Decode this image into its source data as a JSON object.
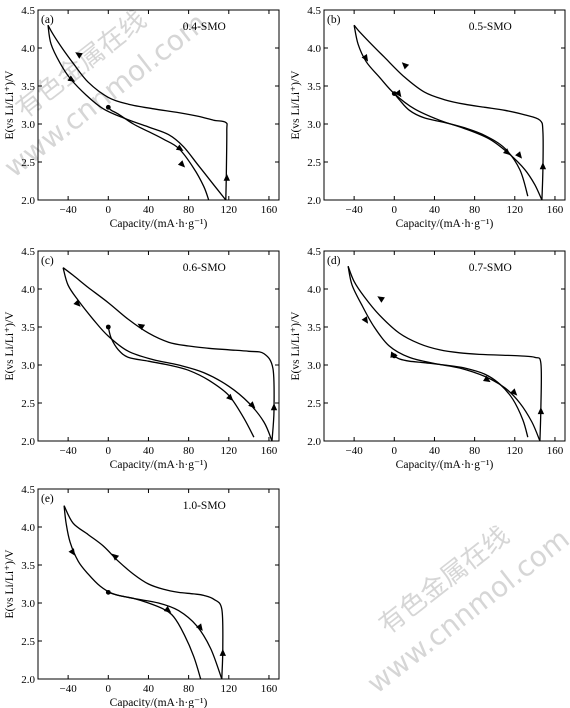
{
  "watermark": {
    "cn": "有色金属在线",
    "url": "www.cnnmol.com"
  },
  "chart_data": [
    {
      "type": "line",
      "panel": "(a)",
      "sample": "0.4-SMO",
      "xlabel": "Capacity/(mA·h·g⁻¹)",
      "ylabel": "E(vs Li/Li⁺)/V",
      "xlim": [
        -70,
        170
      ],
      "ylim": [
        2.0,
        4.5
      ],
      "xticks": [
        -40,
        0,
        40,
        80,
        120,
        160
      ],
      "yticks": [
        2.0,
        2.5,
        3.0,
        3.5,
        4.0,
        4.5
      ],
      "series": [
        {
          "x": [
            0,
            3,
            10,
            25,
            40,
            55,
            70,
            85,
            95,
            100
          ],
          "y": [
            3.22,
            3.18,
            3.13,
            3.0,
            2.9,
            2.8,
            2.68,
            2.42,
            2.18,
            2.0
          ]
        },
        {
          "x": [
            117,
            117.5,
            118,
            117,
            105,
            90,
            70,
            45,
            20,
            0,
            -20,
            -35,
            -45,
            -55,
            -60
          ],
          "y": [
            2.0,
            2.3,
            2.9,
            3.02,
            3.05,
            3.1,
            3.15,
            3.2,
            3.26,
            3.35,
            3.55,
            3.8,
            3.98,
            4.18,
            4.3
          ]
        },
        {
          "x": [
            -60,
            -57,
            -48,
            -38,
            -22,
            -5,
            15,
            40,
            60,
            75,
            90,
            105,
            117
          ],
          "y": [
            4.3,
            4.05,
            3.8,
            3.6,
            3.38,
            3.2,
            3.08,
            2.96,
            2.86,
            2.7,
            2.45,
            2.2,
            2.0
          ]
        }
      ],
      "arrows": [
        {
          "x": -30,
          "y": 3.92,
          "toward": [
            -45,
            4.05
          ]
        },
        {
          "x": -36,
          "y": 3.58,
          "toward": [
            -26,
            3.5
          ]
        },
        {
          "x": 72,
          "y": 2.67,
          "toward": [
            80,
            2.6
          ]
        },
        {
          "x": 74,
          "y": 2.46,
          "toward": [
            80,
            2.38
          ]
        },
        {
          "x": 118,
          "y": 2.3,
          "toward": [
            118,
            2.4
          ]
        }
      ],
      "start_point": [
        0,
        3.22
      ]
    },
    {
      "type": "line",
      "panel": "(b)",
      "sample": "0.5-SMO",
      "xlabel": "Capacity/(mA·h·g⁻¹)",
      "ylabel": "E(vs Li/Li⁺)/V",
      "xlim": [
        -70,
        170
      ],
      "ylim": [
        2.0,
        4.5
      ],
      "xticks": [
        -40,
        0,
        40,
        80,
        120,
        160
      ],
      "yticks": [
        2.0,
        2.5,
        3.0,
        3.5,
        4.0,
        4.5
      ],
      "series": [
        {
          "x": [
            0,
            5,
            15,
            30,
            50,
            70,
            90,
            110,
            125,
            133
          ],
          "y": [
            3.4,
            3.32,
            3.18,
            3.08,
            3.02,
            2.95,
            2.85,
            2.68,
            2.4,
            2.05
          ]
        },
        {
          "x": [
            147,
            148,
            148,
            145,
            130,
            110,
            90,
            70,
            50,
            30,
            10,
            -10,
            -25,
            -35,
            -40
          ],
          "y": [
            2.0,
            2.4,
            2.9,
            3.05,
            3.12,
            3.18,
            3.22,
            3.26,
            3.32,
            3.42,
            3.62,
            3.88,
            4.08,
            4.22,
            4.3
          ]
        },
        {
          "x": [
            -40,
            -36,
            -28,
            -15,
            0,
            20,
            45,
            70,
            95,
            115,
            130,
            140,
            147
          ],
          "y": [
            4.3,
            4.05,
            3.82,
            3.62,
            3.4,
            3.2,
            3.05,
            2.94,
            2.8,
            2.6,
            2.4,
            2.2,
            2.0
          ]
        }
      ],
      "arrows": [
        {
          "x": 10,
          "y": 3.78,
          "toward": [
            2,
            3.88
          ]
        },
        {
          "x": -28,
          "y": 3.86,
          "toward": [
            -22,
            3.74
          ]
        },
        {
          "x": 5,
          "y": 3.39,
          "toward": [
            10,
            3.3
          ]
        },
        {
          "x": 113,
          "y": 2.62,
          "toward": [
            120,
            2.54
          ]
        },
        {
          "x": 125,
          "y": 2.58,
          "toward": [
            130,
            2.5
          ]
        },
        {
          "x": 148,
          "y": 2.45,
          "toward": [
            148,
            2.55
          ]
        }
      ],
      "start_point": [
        0,
        3.4
      ]
    },
    {
      "type": "line",
      "panel": "(c)",
      "sample": "0.6-SMO",
      "xlabel": "Capacity/(mA·h·g⁻¹)",
      "ylabel": "E(vs Li/Li⁺)/V",
      "xlim": [
        -70,
        170
      ],
      "ylim": [
        2.0,
        4.5
      ],
      "xticks": [
        -40,
        0,
        40,
        80,
        120,
        160
      ],
      "yticks": [
        2.0,
        2.5,
        3.0,
        3.5,
        4.0,
        4.5
      ],
      "series": [
        {
          "x": [
            0,
            3,
            10,
            20,
            40,
            60,
            80,
            100,
            120,
            135,
            145
          ],
          "y": [
            3.5,
            3.35,
            3.2,
            3.1,
            3.05,
            3.0,
            2.93,
            2.8,
            2.6,
            2.3,
            2.05
          ]
        },
        {
          "x": [
            163,
            165,
            164,
            155,
            140,
            120,
            100,
            80,
            60,
            40,
            20,
            0,
            -20,
            -35,
            -45
          ],
          "y": [
            2.0,
            2.4,
            2.95,
            3.15,
            3.18,
            3.2,
            3.22,
            3.25,
            3.3,
            3.42,
            3.6,
            3.82,
            4.02,
            4.18,
            4.28
          ]
        },
        {
          "x": [
            -45,
            -40,
            -30,
            -15,
            0,
            20,
            45,
            70,
            95,
            120,
            140,
            155,
            163
          ],
          "y": [
            4.28,
            4.05,
            3.85,
            3.6,
            3.38,
            3.18,
            3.07,
            3.0,
            2.9,
            2.72,
            2.5,
            2.25,
            2.0
          ]
        }
      ],
      "arrows": [
        {
          "x": 32,
          "y": 3.52,
          "toward": [
            25,
            3.58
          ]
        },
        {
          "x": -30,
          "y": 3.8,
          "toward": [
            -24,
            3.72
          ]
        },
        {
          "x": 122,
          "y": 2.56,
          "toward": [
            128,
            2.48
          ]
        },
        {
          "x": 144,
          "y": 2.46,
          "toward": [
            150,
            2.38
          ]
        },
        {
          "x": 165,
          "y": 2.45,
          "toward": [
            165,
            2.55
          ]
        }
      ],
      "start_point": [
        0,
        3.5
      ]
    },
    {
      "type": "line",
      "panel": "(d)",
      "sample": "0.7-SMO",
      "xlabel": "Capacity/(mA·h·g⁻¹)",
      "ylabel": "E(vs Li/Li⁺)/V",
      "xlim": [
        -70,
        170
      ],
      "ylim": [
        2.0,
        4.5
      ],
      "xticks": [
        -40,
        0,
        40,
        80,
        120,
        160
      ],
      "yticks": [
        2.0,
        2.5,
        3.0,
        3.5,
        4.0,
        4.5
      ],
      "series": [
        {
          "x": [
            0,
            5,
            15,
            30,
            50,
            70,
            90,
            105,
            118,
            128,
            133
          ],
          "y": [
            3.12,
            3.08,
            3.05,
            3.03,
            3.0,
            2.96,
            2.88,
            2.75,
            2.55,
            2.28,
            2.05
          ]
        },
        {
          "x": [
            145,
            146,
            146,
            140,
            125,
            105,
            85,
            65,
            45,
            25,
            5,
            -15,
            -30,
            -40,
            -46
          ],
          "y": [
            2.0,
            2.45,
            3.02,
            3.1,
            3.12,
            3.13,
            3.14,
            3.16,
            3.2,
            3.28,
            3.42,
            3.66,
            3.9,
            4.1,
            4.3
          ]
        },
        {
          "x": [
            -46,
            -42,
            -32,
            -20,
            -5,
            15,
            40,
            65,
            90,
            110,
            125,
            137,
            145
          ],
          "y": [
            4.3,
            4.05,
            3.78,
            3.5,
            3.25,
            3.1,
            3.02,
            2.96,
            2.85,
            2.7,
            2.5,
            2.25,
            2.0
          ]
        }
      ],
      "arrows": [
        {
          "x": -14,
          "y": 3.88,
          "toward": [
            -22,
            3.95
          ]
        },
        {
          "x": -28,
          "y": 3.58,
          "toward": [
            -24,
            3.5
          ]
        },
        {
          "x": 0,
          "y": 3.13,
          "toward": [
            6,
            3.12
          ]
        },
        {
          "x": 93,
          "y": 2.8,
          "toward": [
            100,
            2.74
          ]
        },
        {
          "x": 120,
          "y": 2.63,
          "toward": [
            126,
            2.55
          ]
        },
        {
          "x": 146,
          "y": 2.4,
          "toward": [
            146,
            2.5
          ]
        }
      ],
      "start_point": [
        0,
        3.12
      ]
    },
    {
      "type": "line",
      "panel": "(e)",
      "sample": "1.0-SMO",
      "xlabel": "Capacity/(mA·h·g⁻¹)",
      "ylabel": "E(vs Li/Li⁺)/V",
      "xlim": [
        -70,
        170
      ],
      "ylim": [
        2.0,
        4.5
      ],
      "xticks": [
        -40,
        0,
        40,
        80,
        120,
        160
      ],
      "yticks": [
        2.0,
        2.5,
        3.0,
        3.5,
        4.0,
        4.5
      ],
      "series": [
        {
          "x": [
            0,
            10,
            25,
            40,
            55,
            65,
            75,
            85,
            92
          ],
          "y": [
            3.14,
            3.1,
            3.06,
            3.0,
            2.92,
            2.82,
            2.6,
            2.3,
            2.0
          ]
        },
        {
          "x": [
            113,
            114,
            113,
            105,
            95,
            85,
            70,
            55,
            40,
            25,
            10,
            -5,
            -20,
            -35,
            -44
          ],
          "y": [
            2.0,
            2.4,
            2.92,
            3.05,
            3.1,
            3.12,
            3.14,
            3.18,
            3.25,
            3.38,
            3.55,
            3.75,
            3.9,
            4.05,
            4.28
          ]
        },
        {
          "x": [
            -44,
            -42,
            -38,
            -30,
            -20,
            -8,
            5,
            25,
            50,
            70,
            88,
            102,
            113
          ],
          "y": [
            4.28,
            4.05,
            3.8,
            3.55,
            3.38,
            3.22,
            3.12,
            3.06,
            3.0,
            2.9,
            2.7,
            2.4,
            2.0
          ]
        }
      ],
      "arrows": [
        {
          "x": 6,
          "y": 3.62,
          "toward": [
            -1,
            3.7
          ]
        },
        {
          "x": -35,
          "y": 3.66,
          "toward": [
            -31,
            3.58
          ]
        },
        {
          "x": 60,
          "y": 2.9,
          "toward": [
            66,
            2.84
          ]
        },
        {
          "x": 92,
          "y": 2.67,
          "toward": [
            96,
            2.6
          ]
        },
        {
          "x": 114,
          "y": 2.35,
          "toward": [
            114,
            2.45
          ]
        }
      ],
      "start_point": [
        0,
        3.14
      ]
    }
  ]
}
